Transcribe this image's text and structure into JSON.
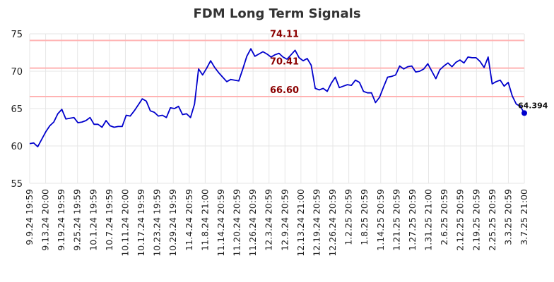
{
  "chart_data": {
    "type": "line",
    "title": "FDM Long Term Signals",
    "xlabel": "",
    "ylabel": "",
    "ylim": [
      55,
      75
    ],
    "yticks": [
      55,
      60,
      65,
      70,
      75
    ],
    "x_tick_labels": [
      "9.9.24 19:59",
      "9.13.24 20:00",
      "9.19.24 19:59",
      "9.25.24 19:59",
      "10.1.24 19:59",
      "10.7.24 19:59",
      "10.11.24 20:00",
      "10.17.24 19:59",
      "10.23.24 19:59",
      "10.29.24 19:59",
      "11.4.24 20:59",
      "11.8.24 21:00",
      "11.14.24 20:59",
      "11.20.24 20:59",
      "11.26.24 20:59",
      "12.3.24 20:59",
      "12.9.24 20:59",
      "12.13.24 21:00",
      "12.19.24 20:59",
      "12.26.24 20:59",
      "1.2.25 20:59",
      "1.8.25 20:59",
      "1.14.25 20:59",
      "1.21.25 20:59",
      "1.27.25 20:59",
      "1.31.25 21:00",
      "2.6.25 20:59",
      "2.12.25 20:59",
      "2.19.25 20:59",
      "2.25.25 20:59",
      "3.3.25 20:59",
      "3.7.25 21:00"
    ],
    "grid": true,
    "series": [
      {
        "name": "",
        "color": "#0000cc",
        "values": [
          60.3,
          60.4,
          59.9,
          60.9,
          61.9,
          62.7,
          63.2,
          64.3,
          64.9,
          63.6,
          63.7,
          63.8,
          63.1,
          63.2,
          63.4,
          63.8,
          62.9,
          62.9,
          62.5,
          63.4,
          62.7,
          62.5,
          62.6,
          62.6,
          64.1,
          64.0,
          64.7,
          65.5,
          66.3,
          66.0,
          64.7,
          64.5,
          64.0,
          64.1,
          63.8,
          65.1,
          65.0,
          65.3,
          64.2,
          64.3,
          63.8,
          65.6,
          70.3,
          69.5,
          70.4,
          71.4,
          70.5,
          69.8,
          69.2,
          68.6,
          68.9,
          68.8,
          68.7,
          70.3,
          72.0,
          73.0,
          72.0,
          72.3,
          72.6,
          72.3,
          71.9,
          72.2,
          72.4,
          71.9,
          71.6,
          72.2,
          72.8,
          71.8,
          71.4,
          71.7,
          70.8,
          67.7,
          67.5,
          67.7,
          67.3,
          68.4,
          69.2,
          67.8,
          68.0,
          68.2,
          68.1,
          68.8,
          68.5,
          67.3,
          67.1,
          67.1,
          65.8,
          66.5,
          67.9,
          69.2,
          69.3,
          69.5,
          70.7,
          70.3,
          70.6,
          70.7,
          69.9,
          70.0,
          70.3,
          71.0,
          70.0,
          69.0,
          70.2,
          70.7,
          71.1,
          70.6,
          71.2,
          71.5,
          71.1,
          71.9,
          71.8,
          71.8,
          71.3,
          70.5,
          71.9,
          68.3,
          68.6,
          68.8,
          68.0,
          68.5,
          66.7,
          65.6,
          65.3,
          64.394
        ]
      }
    ],
    "reference_lines": [
      {
        "value": 74.11,
        "label": "74.11",
        "color": "#ffb3b3"
      },
      {
        "value": 70.41,
        "label": "70.41",
        "color": "#ffb3b3"
      },
      {
        "value": 66.6,
        "label": "66.60",
        "color": "#ffb3b3"
      }
    ],
    "last_point_label": "64.394"
  }
}
